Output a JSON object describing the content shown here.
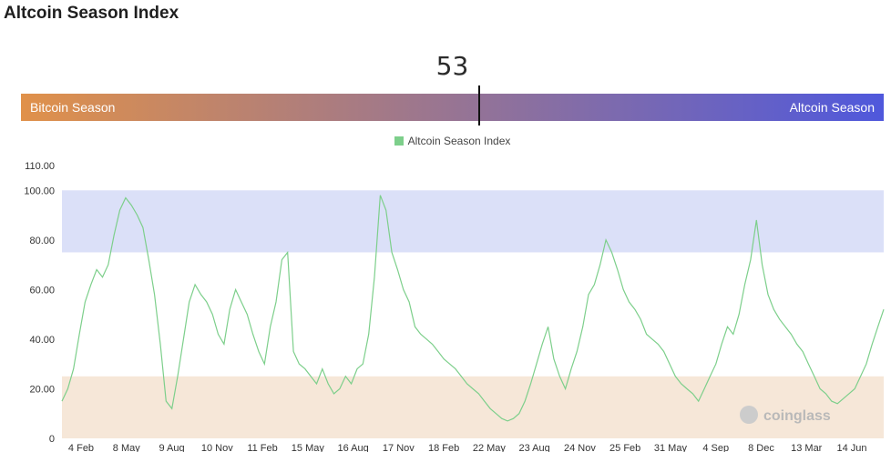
{
  "page_title": "Altcoin Season Index",
  "gauge": {
    "value": "53",
    "left_label": "Bitcoin Season",
    "right_label": "Altcoin Season",
    "gradient_start": "#e0914a",
    "gradient_end": "#4f58dc"
  },
  "watermark": "coinglass",
  "colors": {
    "line": "#7dcf8b",
    "altcoin_zone": "#dbe0f8",
    "bitcoin_zone": "#f6e7d8"
  },
  "chart_data": {
    "type": "line",
    "legend": [
      "Altcoin Season Index"
    ],
    "ylim": [
      0,
      110
    ],
    "yticks": [
      "0",
      "20.00",
      "40.00",
      "60.00",
      "80.00",
      "100.00",
      "110.00"
    ],
    "ytick_values": [
      0,
      20,
      40,
      60,
      80,
      100,
      110
    ],
    "xtick_labels": [
      "4 Feb",
      "8 May",
      "9 Aug",
      "10 Nov",
      "11 Feb",
      "15 May",
      "16 Aug",
      "17 Nov",
      "18 Feb",
      "22 May",
      "23 Aug",
      "24 Nov",
      "25 Feb",
      "31 May",
      "4 Sep",
      "8 Dec",
      "13 Mar",
      "14 Jun"
    ],
    "bands": [
      {
        "name": "altcoin-season-zone",
        "from": 75,
        "to": 100
      },
      {
        "name": "bitcoin-season-zone",
        "from": 0,
        "to": 25
      }
    ],
    "series": [
      {
        "name": "Altcoin Season Index",
        "values": [
          15,
          20,
          28,
          42,
          55,
          62,
          68,
          65,
          70,
          82,
          92,
          97,
          94,
          90,
          85,
          72,
          58,
          38,
          15,
          12,
          25,
          40,
          55,
          62,
          58,
          55,
          50,
          42,
          38,
          52,
          60,
          55,
          50,
          42,
          35,
          30,
          45,
          55,
          72,
          75,
          35,
          30,
          28,
          25,
          22,
          28,
          22,
          18,
          20,
          25,
          22,
          28,
          30,
          42,
          65,
          98,
          92,
          75,
          68,
          60,
          55,
          45,
          42,
          40,
          38,
          35,
          32,
          30,
          28,
          25,
          22,
          20,
          18,
          15,
          12,
          10,
          8,
          7,
          8,
          10,
          15,
          22,
          30,
          38,
          45,
          32,
          25,
          20,
          28,
          35,
          45,
          58,
          62,
          70,
          80,
          75,
          68,
          60,
          55,
          52,
          48,
          42,
          40,
          38,
          35,
          30,
          25,
          22,
          20,
          18,
          15,
          20,
          25,
          30,
          38,
          45,
          42,
          50,
          62,
          72,
          88,
          70,
          58,
          52,
          48,
          45,
          42,
          38,
          35,
          30,
          25,
          20,
          18,
          15,
          14,
          16,
          18,
          20,
          25,
          30,
          38,
          45,
          52
        ]
      }
    ]
  }
}
